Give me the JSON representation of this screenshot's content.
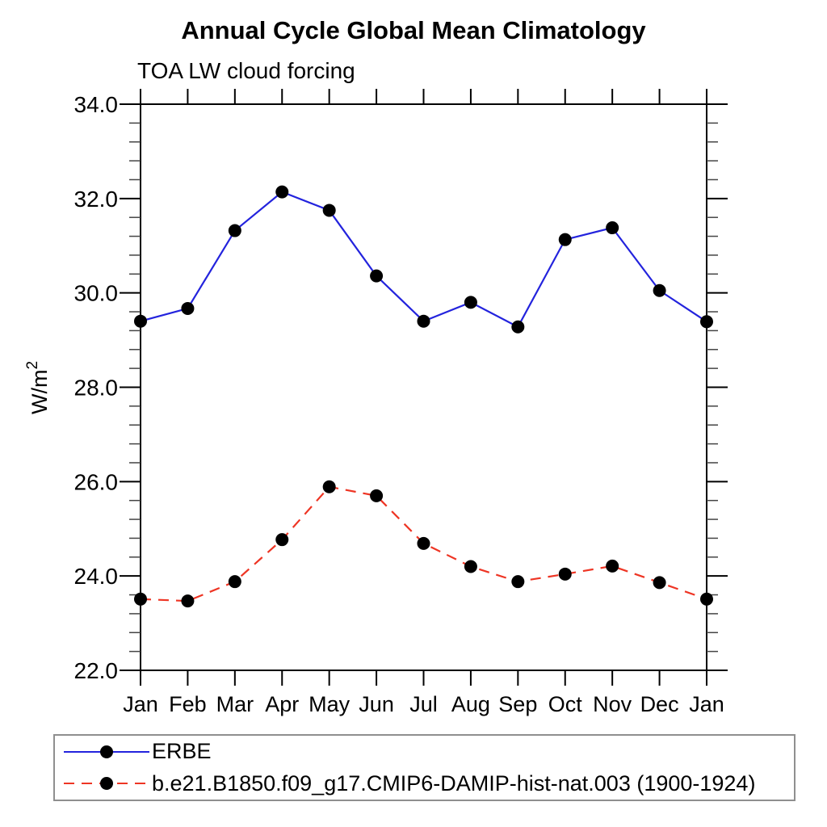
{
  "page": {
    "title": "Annual Cycle Global Mean Climatology",
    "subtitle": "TOA LW cloud forcing"
  },
  "chart_data": {
    "type": "line",
    "title": "Annual Cycle Global Mean Climatology",
    "subtitle": "TOA LW cloud forcing",
    "ylabel": {
      "base": "W/m",
      "sup": "2"
    },
    "xlabel": "",
    "categories": [
      "Jan",
      "Feb",
      "Mar",
      "Apr",
      "May",
      "Jun",
      "Jul",
      "Aug",
      "Sep",
      "Oct",
      "Nov",
      "Dec",
      "Jan"
    ],
    "ylim": [
      22.0,
      34.0
    ],
    "ytick_major": [
      22.0,
      24.0,
      26.0,
      28.0,
      30.0,
      32.0,
      34.0
    ],
    "ytick_labels": [
      "22.0",
      "24.0",
      "26.0",
      "28.0",
      "30.0",
      "32.0",
      "34.0"
    ],
    "ytick_minor_step": 0.4,
    "grid": false,
    "legend_position": "bottom-left-box",
    "axis_color": "#000000",
    "marker_color": "#000000",
    "series": [
      {
        "name": "ERBE",
        "color": "#2323dd",
        "style": "solid",
        "marker": "circle",
        "values": [
          29.4,
          29.67,
          31.32,
          32.14,
          31.75,
          30.36,
          29.4,
          29.8,
          29.28,
          31.13,
          31.38,
          30.05,
          29.39
        ]
      },
      {
        "name": "b.e21.B1850.f09_g17.CMIP6-DAMIP-hist-nat.003 (1900-1924)",
        "color": "#ee3524",
        "style": "dashed",
        "marker": "circle",
        "values": [
          23.51,
          23.47,
          23.88,
          24.77,
          25.89,
          25.7,
          24.69,
          24.2,
          23.88,
          24.04,
          24.21,
          23.86,
          23.51
        ]
      }
    ]
  }
}
